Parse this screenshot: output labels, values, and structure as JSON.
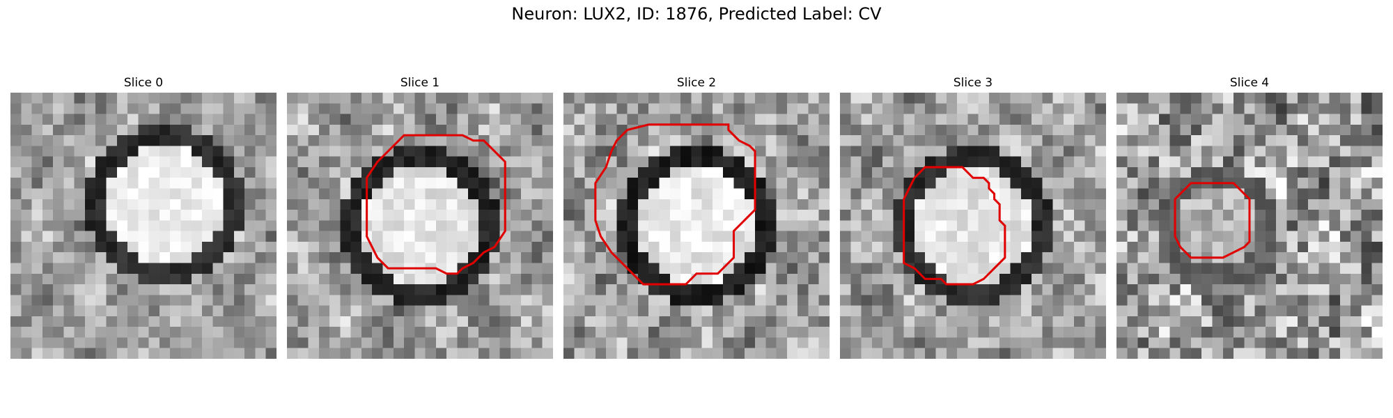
{
  "figure": {
    "title": "Neuron: LUX2, ID: 1876, Predicted Label: CV"
  },
  "contour_color": "#e00000",
  "slices": [
    {
      "title": "Slice 0",
      "seed": 11,
      "ring": 0.9,
      "bright": 0.95,
      "noise": 0.18,
      "contour": []
    },
    {
      "title": "Slice 1",
      "seed": 23,
      "ring": 0.95,
      "bright": 0.85,
      "noise": 0.2,
      "contour": [
        [
          11,
          4
        ],
        [
          16.5,
          4
        ],
        [
          17.5,
          4.5
        ],
        [
          18.5,
          4.5
        ],
        [
          20.5,
          6.5
        ],
        [
          20.5,
          13
        ],
        [
          19.5,
          14.5
        ],
        [
          18.5,
          15
        ],
        [
          17.5,
          16
        ],
        [
          16.5,
          16.5
        ],
        [
          16,
          17
        ],
        [
          15,
          17
        ],
        [
          14,
          16.5
        ],
        [
          9.5,
          16.5
        ],
        [
          8.5,
          15.5
        ],
        [
          8,
          14.5
        ],
        [
          7.5,
          13.5
        ],
        [
          7.5,
          8
        ],
        [
          8.5,
          6.5
        ],
        [
          10,
          5
        ]
      ]
    },
    {
      "title": "Slice 2",
      "seed": 37,
      "ring": 1.0,
      "bright": 0.9,
      "noise": 0.22,
      "contour": [
        [
          10,
          3
        ],
        [
          15.5,
          3
        ],
        [
          15.5,
          3.5
        ],
        [
          16,
          4
        ],
        [
          16.5,
          4.5
        ],
        [
          17.5,
          5
        ],
        [
          18,
          5.5
        ],
        [
          18,
          11
        ],
        [
          17,
          12
        ],
        [
          16,
          13
        ],
        [
          16,
          15.5
        ],
        [
          15.5,
          16
        ],
        [
          14.5,
          17
        ],
        [
          12.5,
          17
        ],
        [
          11.5,
          18
        ],
        [
          7.5,
          18
        ],
        [
          6.5,
          17
        ],
        [
          5.5,
          16
        ],
        [
          4.5,
          15
        ],
        [
          3.5,
          13.5
        ],
        [
          3,
          12
        ],
        [
          3,
          8.5
        ],
        [
          4,
          7
        ],
        [
          4.5,
          5.5
        ],
        [
          5,
          4.5
        ],
        [
          6,
          3.5
        ],
        [
          8,
          3
        ]
      ]
    },
    {
      "title": "Slice 3",
      "seed": 41,
      "ring": 0.9,
      "bright": 0.85,
      "noise": 0.2,
      "contour": [
        [
          8,
          7
        ],
        [
          11.5,
          7
        ],
        [
          12,
          7.5
        ],
        [
          12.5,
          8
        ],
        [
          13.5,
          8
        ],
        [
          14,
          8.5
        ],
        [
          14,
          9
        ],
        [
          14.5,
          9.5
        ],
        [
          14.5,
          10
        ],
        [
          15,
          10.5
        ],
        [
          15,
          12
        ],
        [
          15.5,
          12.5
        ],
        [
          15.5,
          15.5
        ],
        [
          14.5,
          16.5
        ],
        [
          13.5,
          17.5
        ],
        [
          12.5,
          18
        ],
        [
          10,
          18
        ],
        [
          9.5,
          17.5
        ],
        [
          8,
          17.5
        ],
        [
          7,
          16.5
        ],
        [
          6,
          16
        ],
        [
          6,
          15.5
        ],
        [
          6,
          10
        ],
        [
          7,
          8
        ]
      ]
    },
    {
      "title": "Slice 4",
      "seed": 53,
      "ring": 0.5,
      "bright": 0.3,
      "noise": 0.32,
      "contour": [
        [
          7,
          8.5
        ],
        [
          11,
          8.5
        ],
        [
          12.5,
          10
        ],
        [
          12.5,
          14
        ],
        [
          12,
          14.5
        ],
        [
          11,
          15
        ],
        [
          10,
          15.5
        ],
        [
          7,
          15.5
        ],
        [
          6,
          14.5
        ],
        [
          5.5,
          13.5
        ],
        [
          5.5,
          10
        ],
        [
          6.5,
          9
        ]
      ]
    }
  ]
}
